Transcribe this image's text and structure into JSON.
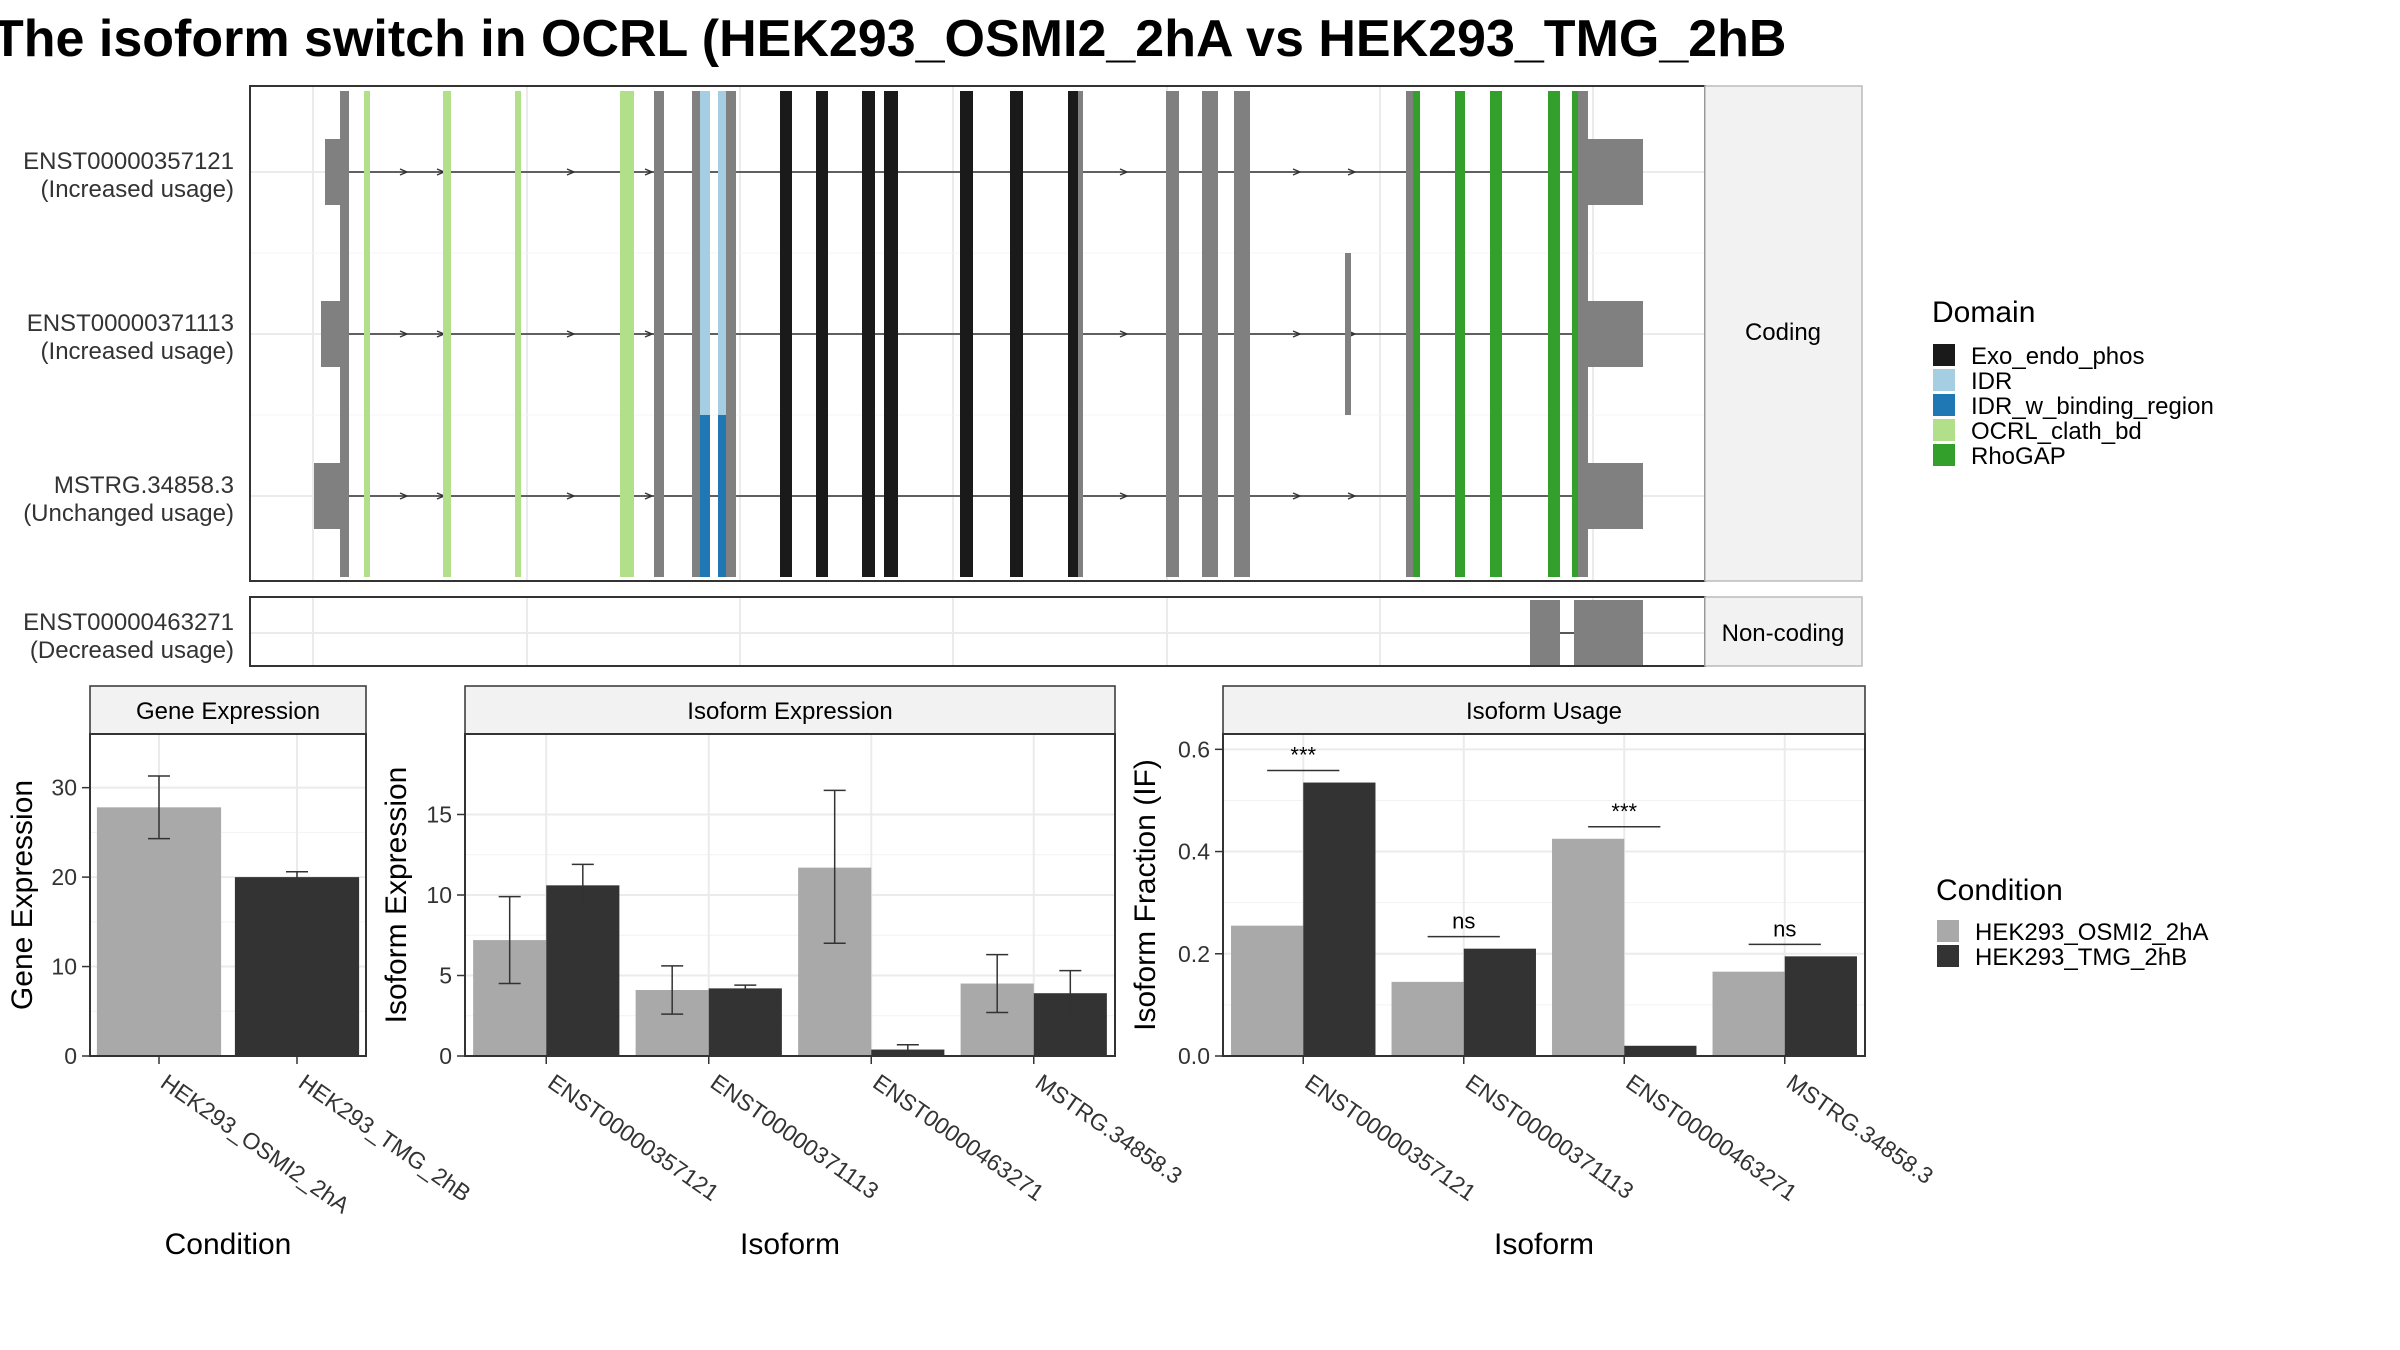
{
  "title": "The isoform switch in OCRL (HEK293_OSMI2_2hA vs HEK293_TMG_2hB",
  "colors": {
    "Exo_endo_phos": "#1a1a1a",
    "IDR": "#a6cee3",
    "IDR_w_binding_region": "#1f78b4",
    "OCRL_clath_bd": "#b2df8a",
    "RhoGAP": "#33a02c",
    "plain_exon": "#808080",
    "cond_a": "#a9a9a9",
    "cond_b": "#333333"
  },
  "structure": {
    "facet_coding": "Coding",
    "facet_noncoding": "Non-coding",
    "transcripts": [
      {
        "id": "ENST00000357121",
        "usage": "(Increased usage)",
        "group": "coding",
        "extra_exon": false,
        "idr_type": "IDR"
      },
      {
        "id": "ENST00000371113",
        "usage": "(Increased usage)",
        "group": "coding",
        "extra_exon": true,
        "idr_type": "IDR"
      },
      {
        "id": "MSTRG.34858.3",
        "usage": "(Unchanged usage)",
        "group": "coding",
        "extra_exon": false,
        "idr_type": "IDR_w_binding_region"
      },
      {
        "id": "ENST00000463271",
        "usage": "(Decreased usage)",
        "group": "noncoding",
        "extra_exon": false,
        "idr_type": ""
      }
    ]
  },
  "domain_legend": {
    "title": "Domain",
    "items": [
      {
        "label": "Exo_endo_phos",
        "color": "#1a1a1a"
      },
      {
        "label": "IDR",
        "color": "#a6cee3"
      },
      {
        "label": "IDR_w_binding_region",
        "color": "#1f78b4"
      },
      {
        "label": "OCRL_clath_bd",
        "color": "#b2df8a"
      },
      {
        "label": "RhoGAP",
        "color": "#33a02c"
      }
    ]
  },
  "condition_legend": {
    "title": "Condition",
    "items": [
      {
        "label": "HEK293_OSMI2_2hA",
        "color": "#a9a9a9"
      },
      {
        "label": "HEK293_TMG_2hB",
        "color": "#333333"
      }
    ]
  },
  "chart_data": [
    {
      "type": "bar",
      "title": "Gene Expression",
      "xlabel": "Condition",
      "ylabel": "Gene Expression",
      "categories": [
        "HEK293_OSMI2_2hA",
        "HEK293_TMG_2hB"
      ],
      "values": [
        27.8,
        20.0
      ],
      "error": [
        [
          24.3,
          31.3
        ],
        [
          19.4,
          20.6
        ]
      ],
      "ylim": [
        0,
        36
      ],
      "yticks": [
        0,
        10,
        20,
        30
      ]
    },
    {
      "type": "bar",
      "title": "Isoform Expression",
      "xlabel": "Isoform",
      "ylabel": "Isoform Expression",
      "categories": [
        "ENST00000357121",
        "ENST00000371113",
        "ENST00000463271",
        "MSTRG.34858.3"
      ],
      "series": [
        {
          "name": "HEK293_OSMI2_2hA",
          "values": [
            7.2,
            4.1,
            11.7,
            4.5
          ],
          "error": [
            [
              4.5,
              9.9
            ],
            [
              2.6,
              5.6
            ],
            [
              7.0,
              16.5
            ],
            [
              2.7,
              6.3
            ]
          ]
        },
        {
          "name": "HEK293_TMG_2hB",
          "values": [
            10.6,
            4.2,
            0.4,
            3.9
          ],
          "error": [
            [
              9.4,
              11.9
            ],
            [
              4.1,
              4.4
            ],
            [
              0.2,
              0.7
            ],
            [
              2.5,
              5.3
            ]
          ]
        }
      ],
      "ylim": [
        0,
        20
      ],
      "yticks": [
        0,
        5,
        10,
        15
      ]
    },
    {
      "type": "bar",
      "title": "Isoform Usage",
      "xlabel": "Isoform",
      "ylabel": "Isoform Fraction (IF)",
      "categories": [
        "ENST00000357121",
        "ENST00000371113",
        "ENST00000463271",
        "MSTRG.34858.3"
      ],
      "series": [
        {
          "name": "HEK293_OSMI2_2hA",
          "values": [
            0.255,
            0.145,
            0.425,
            0.165
          ]
        },
        {
          "name": "HEK293_TMG_2hB",
          "values": [
            0.535,
            0.21,
            0.02,
            0.195
          ]
        }
      ],
      "significance": [
        "***",
        "ns",
        "***",
        "ns"
      ],
      "ylim": [
        0,
        0.63
      ],
      "yticks": [
        0.0,
        0.2,
        0.4,
        0.6
      ],
      "ytick_labels": [
        "0.0",
        "0.2",
        "0.4",
        "0.6"
      ]
    }
  ]
}
